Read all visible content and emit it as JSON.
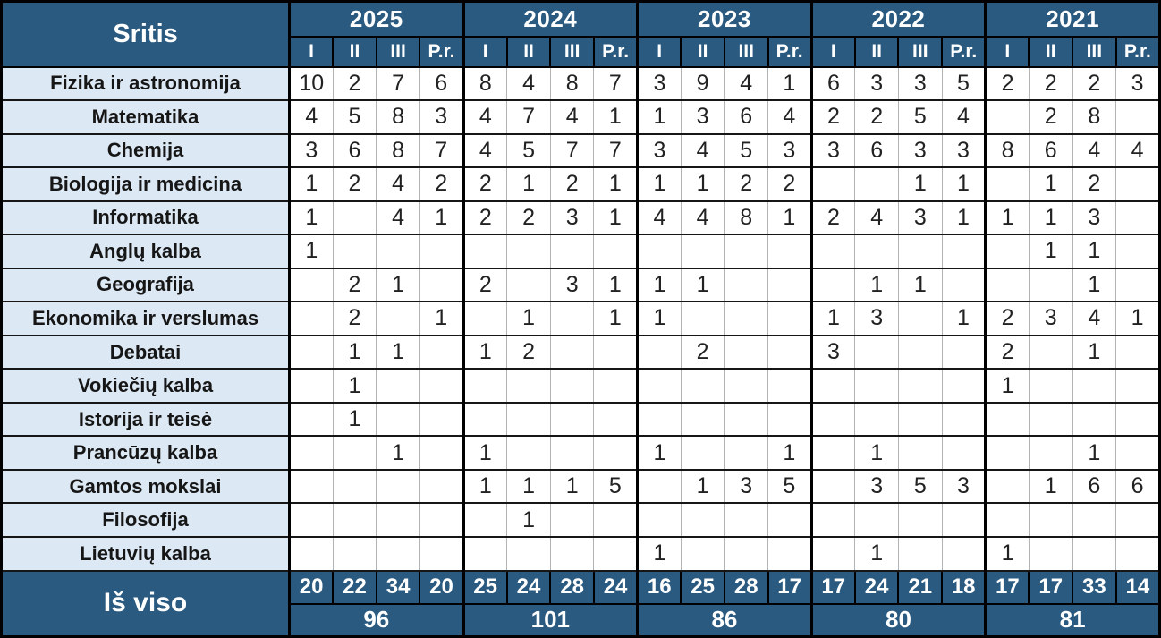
{
  "colors": {
    "header_bg": "#2a5a80",
    "label_bg": "#dce8f4",
    "grid_dark": "#161616",
    "grid_light": "#b3b3b3",
    "text_light": "#ffffff",
    "text_dark": "#222222"
  },
  "chart_data": {
    "type": "table",
    "row_header": "Sritis",
    "totals_label": "Iš viso",
    "years": [
      "2025",
      "2024",
      "2023",
      "2022",
      "2021"
    ],
    "medal_columns": [
      "I",
      "II",
      "III",
      "P.r."
    ],
    "rows": [
      {
        "label": "Fizika ir astronomija",
        "values": [
          "10",
          "2",
          "7",
          "6",
          "8",
          "4",
          "8",
          "7",
          "3",
          "9",
          "4",
          "1",
          "6",
          "3",
          "3",
          "5",
          "2",
          "2",
          "2",
          "3"
        ]
      },
      {
        "label": "Matematika",
        "values": [
          "4",
          "5",
          "8",
          "3",
          "4",
          "7",
          "4",
          "1",
          "1",
          "3",
          "6",
          "4",
          "2",
          "2",
          "5",
          "4",
          "",
          "2",
          "8",
          ""
        ]
      },
      {
        "label": "Chemija",
        "values": [
          "3",
          "6",
          "8",
          "7",
          "4",
          "5",
          "7",
          "7",
          "3",
          "4",
          "5",
          "3",
          "3",
          "6",
          "3",
          "3",
          "8",
          "6",
          "4",
          "4"
        ]
      },
      {
        "label": "Biologija ir medicina",
        "values": [
          "1",
          "2",
          "4",
          "2",
          "2",
          "1",
          "2",
          "1",
          "1",
          "1",
          "2",
          "2",
          "",
          "",
          "1",
          "1",
          "",
          "1",
          "2",
          ""
        ]
      },
      {
        "label": "Informatika",
        "values": [
          "1",
          "",
          "4",
          "1",
          "2",
          "2",
          "3",
          "1",
          "4",
          "4",
          "8",
          "1",
          "2",
          "4",
          "3",
          "1",
          "1",
          "1",
          "3",
          ""
        ]
      },
      {
        "label": "Anglų kalba",
        "values": [
          "1",
          "",
          "",
          "",
          "",
          "",
          "",
          "",
          "",
          "",
          "",
          "",
          "",
          "",
          "",
          "",
          "",
          "1",
          "1",
          ""
        ]
      },
      {
        "label": "Geografija",
        "values": [
          "",
          "2",
          "1",
          "",
          "2",
          "",
          "3",
          "1",
          "1",
          "1",
          "",
          "",
          "",
          "1",
          "1",
          "",
          "",
          "",
          "1",
          ""
        ]
      },
      {
        "label": "Ekonomika ir verslumas",
        "values": [
          "",
          "2",
          "",
          "1",
          "",
          "1",
          "",
          "1",
          "1",
          "",
          "",
          "",
          "1",
          "3",
          "",
          "1",
          "2",
          "3",
          "4",
          "1"
        ]
      },
      {
        "label": "Debatai",
        "values": [
          "",
          "1",
          "1",
          "",
          "1",
          "2",
          "",
          "",
          "",
          "2",
          "",
          "",
          "3",
          "",
          "",
          "",
          "2",
          "",
          "1",
          ""
        ]
      },
      {
        "label": "Vokiečių kalba",
        "values": [
          "",
          "1",
          "",
          "",
          "",
          "",
          "",
          "",
          "",
          "",
          "",
          "",
          "",
          "",
          "",
          "",
          "1",
          "",
          "",
          ""
        ]
      },
      {
        "label": "Istorija ir teisė",
        "values": [
          "",
          "1",
          "",
          "",
          "",
          "",
          "",
          "",
          "",
          "",
          "",
          "",
          "",
          "",
          "",
          "",
          "",
          "",
          "",
          ""
        ]
      },
      {
        "label": "Prancūzų kalba",
        "values": [
          "",
          "",
          "1",
          "",
          "1",
          "",
          "",
          "",
          "1",
          "",
          "",
          "1",
          "",
          "1",
          "",
          "",
          "",
          "",
          "1",
          ""
        ]
      },
      {
        "label": "Gamtos mokslai",
        "values": [
          "",
          "",
          "",
          "",
          "1",
          "1",
          "1",
          "5",
          "",
          "1",
          "3",
          "5",
          "",
          "3",
          "5",
          "3",
          "",
          "1",
          "6",
          "6"
        ]
      },
      {
        "label": "Filosofija",
        "values": [
          "",
          "",
          "",
          "",
          "",
          "1",
          "",
          "",
          "",
          "",
          "",
          "",
          "",
          "",
          "",
          "",
          "",
          "",
          "",
          ""
        ]
      },
      {
        "label": "Lietuvių kalba",
        "values": [
          "",
          "",
          "",
          "",
          "",
          "",
          "",
          "",
          "1",
          "",
          "",
          "",
          "",
          "1",
          "",
          "",
          "1",
          "",
          "",
          ""
        ]
      }
    ],
    "column_totals": [
      "20",
      "22",
      "34",
      "20",
      "25",
      "24",
      "28",
      "24",
      "16",
      "25",
      "28",
      "17",
      "17",
      "24",
      "21",
      "18",
      "17",
      "17",
      "33",
      "14"
    ],
    "year_totals": [
      "96",
      "101",
      "86",
      "80",
      "81"
    ]
  }
}
